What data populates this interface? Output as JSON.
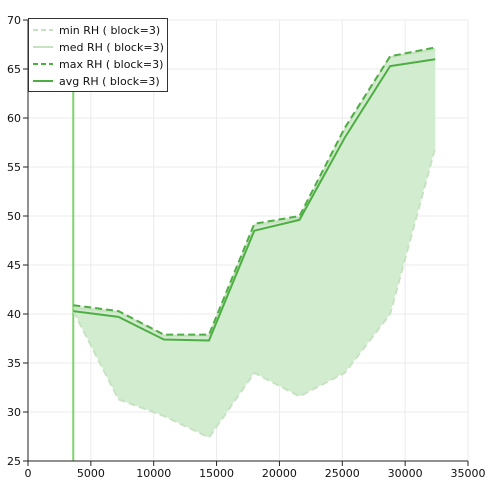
{
  "chart_data": {
    "type": "area",
    "title": "",
    "xlabel": "",
    "ylabel": "",
    "xlim": [
      0,
      35000
    ],
    "ylim": [
      25,
      70
    ],
    "grid": true,
    "legend_position": "top-left",
    "colors": {
      "min": "#c7e2c1",
      "med": "#c7e2c1",
      "max": "#4fae43",
      "avg": "#4fae43",
      "fill": "#d2ecd0",
      "vline": "#7ed36f"
    },
    "vertical_line_x": 3600,
    "x_ticks": [
      {
        "value": 0,
        "label": "0"
      },
      {
        "value": 5000,
        "label": "5000"
      },
      {
        "value": 10000,
        "label": "10000"
      },
      {
        "value": 15000,
        "label": "15000"
      },
      {
        "value": 20000,
        "label": "20000"
      },
      {
        "value": 25000,
        "label": "25000"
      },
      {
        "value": 30000,
        "label": "30000"
      },
      {
        "value": 35000,
        "label": "35000"
      }
    ],
    "y_ticks": [
      {
        "value": 25,
        "label": "25"
      },
      {
        "value": 30,
        "label": "30"
      },
      {
        "value": 35,
        "label": "35"
      },
      {
        "value": 40,
        "label": "40"
      },
      {
        "value": 45,
        "label": "45"
      },
      {
        "value": 50,
        "label": "50"
      },
      {
        "value": 55,
        "label": "55"
      },
      {
        "value": 60,
        "label": "60"
      },
      {
        "value": 65,
        "label": "65"
      },
      {
        "value": 70,
        "label": "70"
      }
    ],
    "x": [
      3600,
      7200,
      10800,
      14400,
      18000,
      21600,
      25200,
      28800,
      32400
    ],
    "series": [
      {
        "key": "min",
        "name": "min RH ( block=3)",
        "style": "dashed",
        "values": [
          40.3,
          31.3,
          29.6,
          27.4,
          34.0,
          31.6,
          34.0,
          40.0,
          57.0
        ]
      },
      {
        "key": "med",
        "name": "med RH ( block=3)",
        "style": "solid",
        "values": [
          40.6,
          40.2,
          37.8,
          37.8,
          49.0,
          49.8,
          58.8,
          66.2,
          67.0
        ]
      },
      {
        "key": "max",
        "name": "max RH ( block=3)",
        "style": "dashed",
        "values": [
          40.9,
          40.3,
          37.9,
          37.9,
          49.2,
          50.0,
          59.0,
          66.3,
          67.2
        ]
      },
      {
        "key": "avg",
        "name": "avg RH ( block=3)",
        "style": "solid",
        "values": [
          40.3,
          39.7,
          37.4,
          37.3,
          48.5,
          49.6,
          58.0,
          65.3,
          66.0
        ]
      }
    ]
  }
}
